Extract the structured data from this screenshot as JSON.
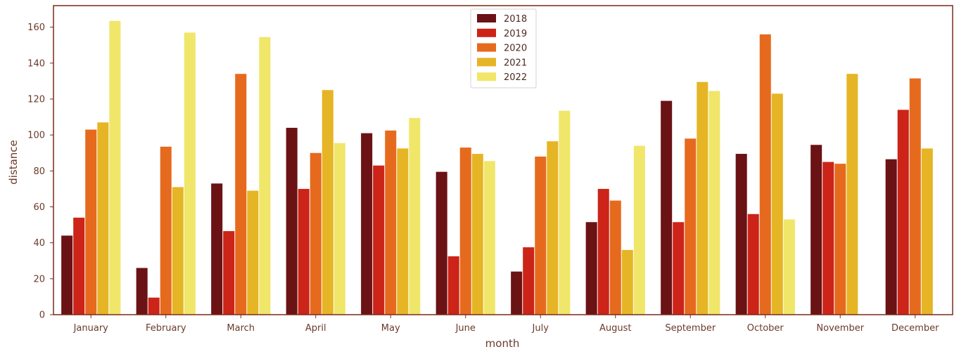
{
  "chart_data": {
    "type": "bar",
    "title": "",
    "xlabel": "month",
    "ylabel": "distance",
    "ylim": [
      0,
      172
    ],
    "yticks": [
      0,
      20,
      40,
      60,
      80,
      100,
      120,
      140,
      160
    ],
    "grid": false,
    "legend_position": "top-center",
    "categories": [
      "January",
      "February",
      "March",
      "April",
      "May",
      "June",
      "July",
      "August",
      "September",
      "October",
      "November",
      "December"
    ],
    "series": [
      {
        "name": "2018",
        "color": "#6b1214",
        "values": [
          44,
          26,
          73,
          104,
          101,
          79.5,
          24,
          51.5,
          119,
          89.5,
          94.5,
          86.5
        ]
      },
      {
        "name": "2019",
        "color": "#cc2418",
        "values": [
          54,
          9.5,
          46.5,
          70,
          83,
          32.5,
          37.5,
          70,
          51.5,
          56,
          85,
          114
        ]
      },
      {
        "name": "2020",
        "color": "#e66a1e",
        "values": [
          103,
          93.5,
          134,
          90,
          102.5,
          93,
          88,
          63.5,
          98,
          156,
          84,
          131.5
        ]
      },
      {
        "name": "2021",
        "color": "#e6b525",
        "values": [
          107,
          71,
          69,
          125,
          92.5,
          89.5,
          96.5,
          36,
          129.5,
          123,
          134,
          92.5
        ]
      },
      {
        "name": "2022",
        "color": "#f0e66a",
        "values": [
          163.5,
          157,
          154.5,
          95.5,
          109.5,
          85.5,
          113.5,
          94,
          124.5,
          53,
          null,
          null
        ]
      }
    ]
  }
}
